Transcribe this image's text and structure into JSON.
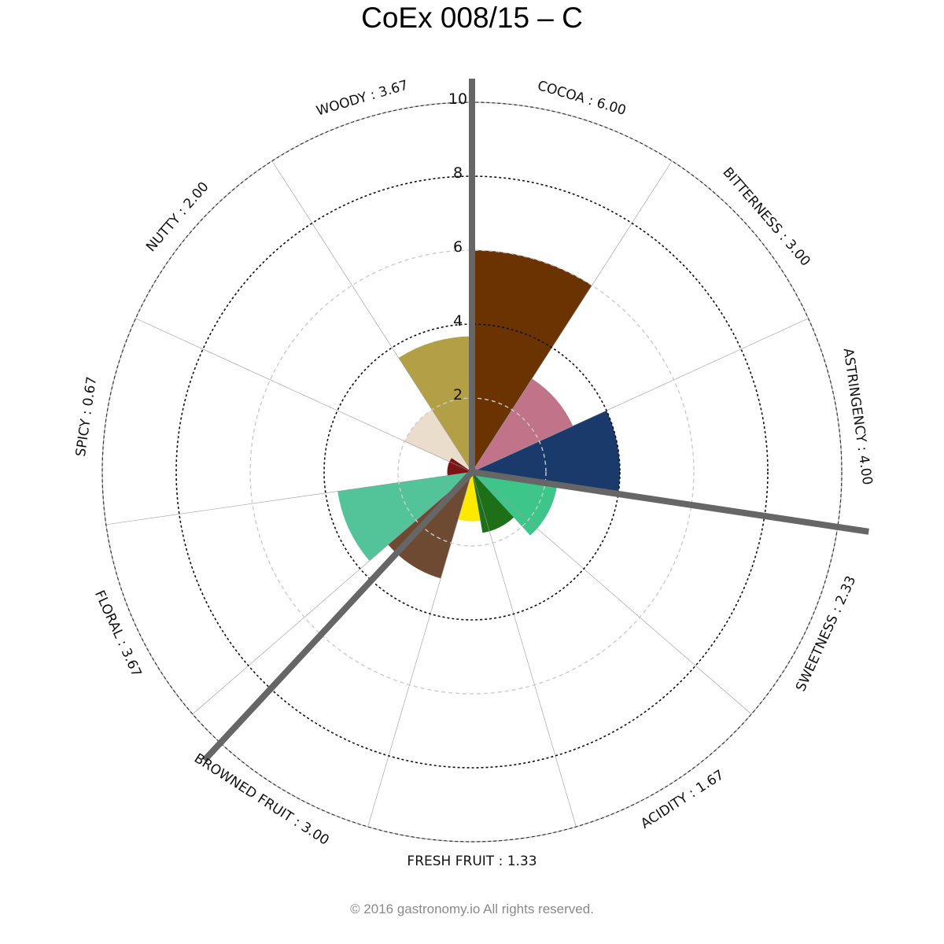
{
  "title": "CoEx 008/15 – C",
  "copyright": "© 2016 gastronomy.io All rights reserved.",
  "chart_data": {
    "type": "polar-bar",
    "title": "CoEx 008/15 – C",
    "rlim": [
      0,
      10
    ],
    "rticks": [
      "2",
      "4",
      "6",
      "8",
      "10"
    ],
    "categories": [
      "COCOA",
      "BITTERNESS",
      "ASTRINGENCY",
      "SWEETNESS",
      "ACIDITY",
      "FRESH FRUIT",
      "BROWNED FRUIT",
      "FLORAL",
      "SPICY",
      "NUTTY",
      "WOODY"
    ],
    "category_labels": [
      "COCOA : 6.00",
      "BITTERNESS : 3.00",
      "ASTRINGENCY : 4.00",
      "SWEETNESS : 2.33",
      "ACIDITY : 1.67",
      "FRESH FRUIT : 1.33",
      "BROWNED FRUIT : 3.00",
      "FLORAL : 3.67",
      "SPICY : 0.67",
      "NUTTY : 2.00",
      "WOODY : 3.67"
    ],
    "values": [
      6.0,
      3.0,
      4.0,
      2.33,
      1.67,
      1.33,
      3.0,
      3.67,
      0.67,
      2.0,
      3.67
    ],
    "sub_bars": [
      {
        "value": 2.33,
        "color": "#3ec58a"
      },
      {
        "value": 1.67,
        "color": "#1e7018"
      },
      {
        "value": 1.33,
        "color": "#ffe800"
      },
      {
        "value": 0.67,
        "color": "#7a1515"
      }
    ],
    "colors": [
      "#6b3302",
      "#c07389",
      "#1a3a6b",
      "#3ec58a",
      "#1e7018",
      "#ffe800",
      "#6e4a32",
      "#53c39a",
      "#7a1515",
      "#eaddcc",
      "#b3a046"
    ],
    "grid": true,
    "direction": "clockwise",
    "start_angle": "top"
  }
}
